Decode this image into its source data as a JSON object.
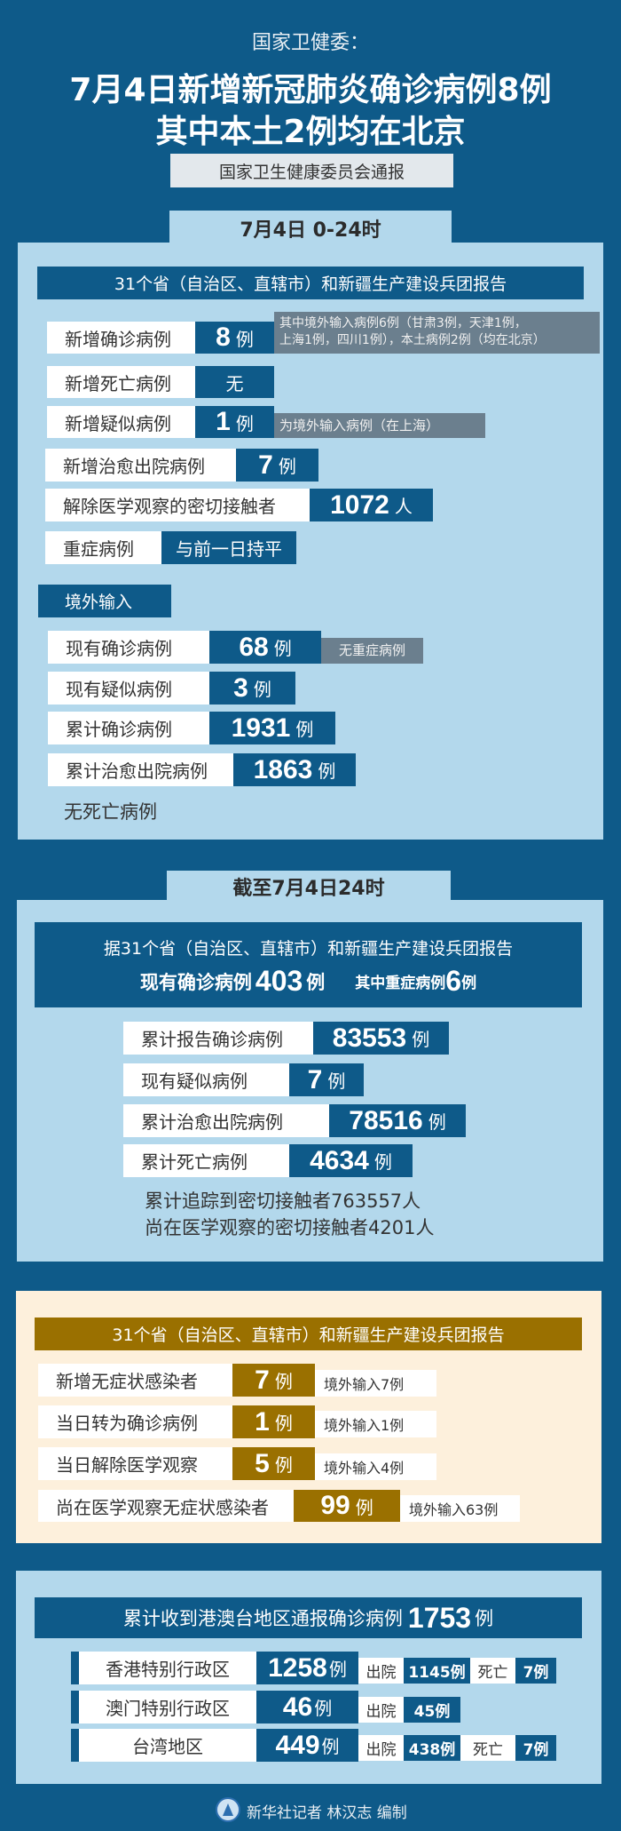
{
  "header": {
    "source": "国家卫健委：",
    "headline_1": "7月4日新增新冠肺炎确诊病例8例",
    "headline_2": "其中本土2例均在北京",
    "subtitle": "国家卫生健康委员会通报"
  },
  "daily": {
    "tab": "7月4日 0-24时",
    "bar": "31个省（自治区、直辖市）和新疆生产建设兵团报告",
    "rows": [
      {
        "label": "新增确诊病例",
        "num": "8",
        "unit": "例",
        "note_1": "其中境外输入病例6例（甘肃3例，天津1例，",
        "note_2": "上海1例，四川1例），本土病例2例（均在北京）"
      },
      {
        "label": "新增死亡病例",
        "num": "无"
      },
      {
        "label": "新增疑似病例",
        "num": "1",
        "unit": "例",
        "note": "为境外输入病例（在上海）"
      },
      {
        "label": "新增治愈出院病例",
        "num": "7",
        "unit": "例"
      },
      {
        "label": "解除医学观察的密切接触者",
        "num": "1072",
        "unit": "人"
      },
      {
        "label": "重症病例",
        "num": "与前一日持平"
      }
    ],
    "imported": {
      "tag": "境外输入",
      "rows": [
        {
          "label": "现有确诊病例",
          "num": "68",
          "unit": "例",
          "note": "无重症病例"
        },
        {
          "label": "现有疑似病例",
          "num": "3",
          "unit": "例"
        },
        {
          "label": "累计确诊病例",
          "num": "1931",
          "unit": "例"
        },
        {
          "label": "累计治愈出院病例",
          "num": "1863",
          "unit": "例"
        }
      ],
      "footer": "无死亡病例"
    }
  },
  "cumulative": {
    "tab": "截至7月4日24时",
    "bar_line1": "据31个省（自治区、直辖市）和新疆生产建设兵团报告",
    "current_label": "现有确诊病例",
    "current_num": "403",
    "current_unit": "例",
    "severe_label": "其中重症病例",
    "severe_num": "6",
    "severe_unit": "例",
    "rows": [
      {
        "label": "累计报告确诊病例",
        "num": "83553",
        "unit": "例"
      },
      {
        "label": "现有疑似病例",
        "num": "7",
        "unit": "例"
      },
      {
        "label": "累计治愈出院病例",
        "num": "78516",
        "unit": "例"
      },
      {
        "label": "累计死亡病例",
        "num": "4634",
        "unit": "例"
      }
    ],
    "line1": "累计追踪到密切接触者763557人",
    "line2": "尚在医学观察的密切接触者4201人"
  },
  "asymptomatic": {
    "bar": "31个省（自治区、直辖市）和新疆生产建设兵团报告",
    "rows": [
      {
        "label": "新增无症状感染者",
        "num": "7",
        "unit": "例",
        "note": "境外输入7例"
      },
      {
        "label": "当日转为确诊病例",
        "num": "1",
        "unit": "例",
        "note": "境外输入1例"
      },
      {
        "label": "当日解除医学观察",
        "num": "5",
        "unit": "例",
        "note": "境外输入4例"
      },
      {
        "label": "尚在医学观察无症状感染者",
        "num": "99",
        "unit": "例",
        "note": "境外输入63例"
      }
    ]
  },
  "hmt": {
    "bar_text": "累计收到港澳台地区通报确诊病例",
    "bar_num": "1753",
    "bar_unit": "例",
    "discharged_label": "出院",
    "death_label": "死亡",
    "rows": [
      {
        "label": "香港特别行政区",
        "num": "1258",
        "unit": "例",
        "discharged": "1145例",
        "deaths": "7例"
      },
      {
        "label": "澳门特别行政区",
        "num": "46",
        "unit": "例",
        "discharged": "45例"
      },
      {
        "label": "台湾地区",
        "num": "449",
        "unit": "例",
        "discharged": "438例",
        "deaths": "7例"
      }
    ]
  },
  "footer": {
    "credit": "新华社记者 林汉志 编制",
    "logo": "xinhua-logo"
  },
  "colors": {
    "background": "#0e5a89",
    "panel": "#b3d8ec",
    "note": "#6b7f8e",
    "gold": "#9a7000",
    "cream": "#fdf0dc"
  }
}
